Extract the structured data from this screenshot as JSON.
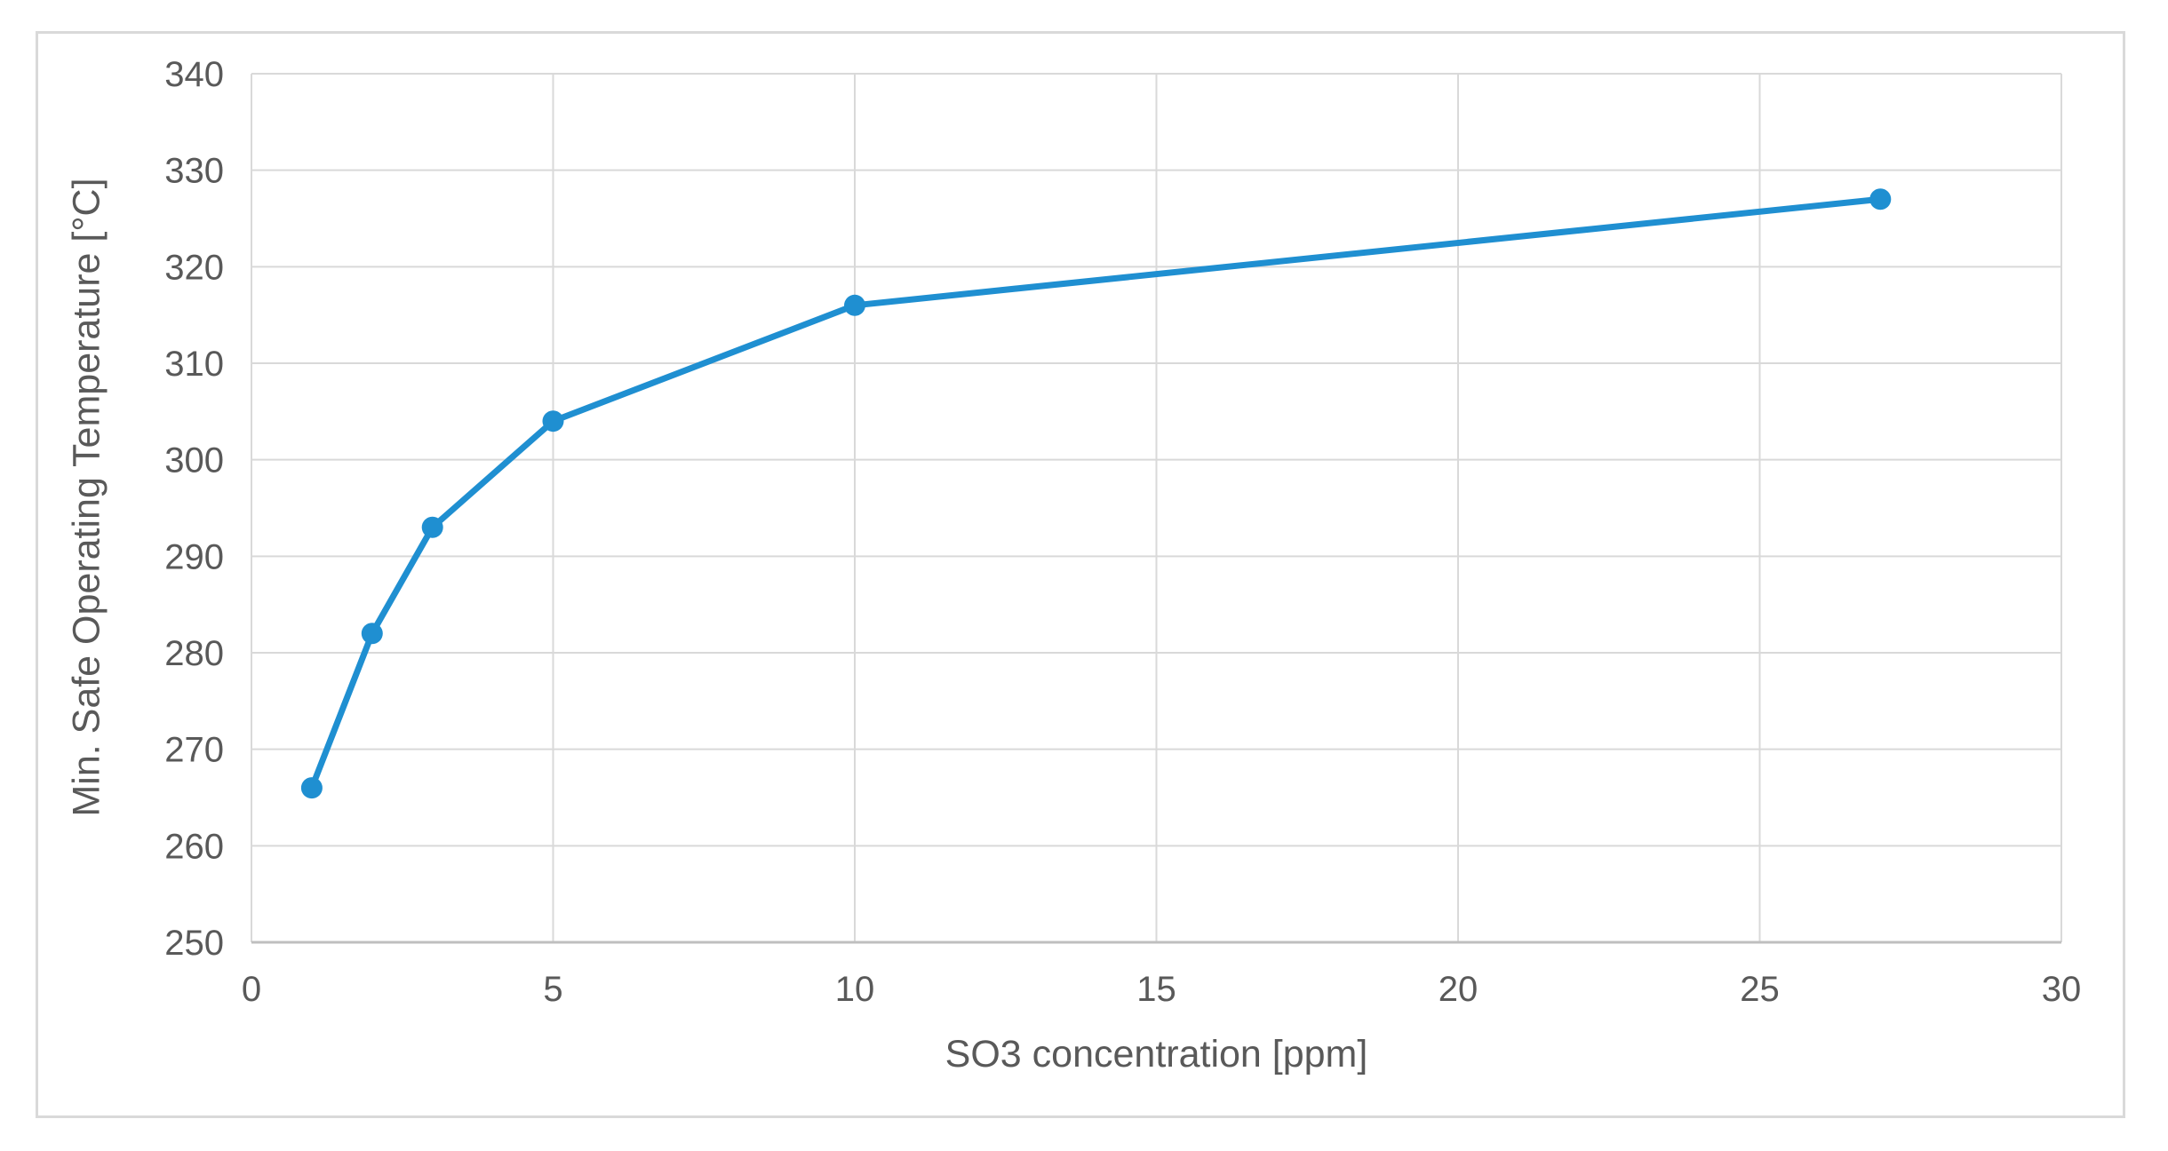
{
  "chart_data": {
    "type": "line",
    "title": "",
    "xlabel": "SO3 concentration [ppm]",
    "ylabel": "Min. Safe Operating Temperature [°C]",
    "series": [
      {
        "name": "Min. Safe Operating Temperature",
        "x": [
          1,
          2,
          3,
          5,
          10,
          27
        ],
        "y": [
          266,
          282,
          293,
          304,
          316,
          327
        ]
      }
    ],
    "x_axis": {
      "min": 0,
      "max": 30,
      "step": 5,
      "tick_labels": [
        "0",
        "5",
        "10",
        "15",
        "20",
        "25",
        "30"
      ]
    },
    "y_axis": {
      "min": 250,
      "max": 340,
      "step": 10,
      "tick_labels": [
        "250",
        "260",
        "270",
        "280",
        "290",
        "300",
        "310",
        "320",
        "330",
        "340"
      ]
    },
    "grid": true,
    "legend_position": "none",
    "colors": {
      "series": "#1F8FD1",
      "gridline": "#D9D9D9",
      "axis_line": "#BFBFBF",
      "tick_text": "#595959",
      "frame_border": "#D9D9D9",
      "background": "#FFFFFF"
    }
  }
}
